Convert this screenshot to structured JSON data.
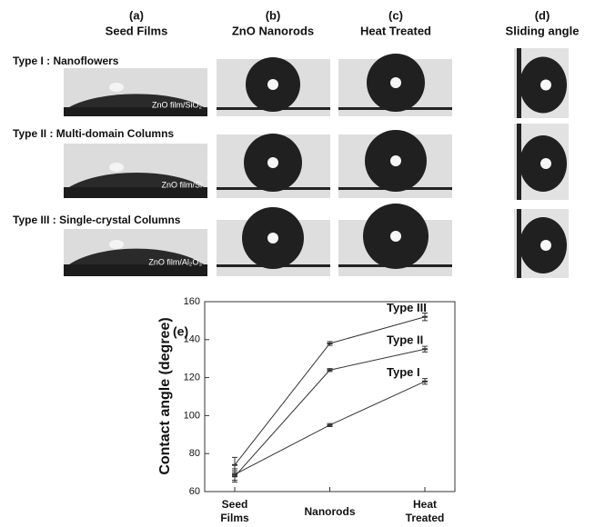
{
  "columns": [
    {
      "letter": "(a)",
      "title": "Seed Films"
    },
    {
      "letter": "(b)",
      "title": "ZnO Nanorods"
    },
    {
      "letter": "(c)",
      "title": "Heat Treated"
    },
    {
      "letter": "(d)",
      "title": "Sliding angle"
    }
  ],
  "rows": [
    {
      "label": "Type I : Nanoflowers",
      "substrate": "ZnO film/SiO₂"
    },
    {
      "label": "Type II : Multi-domain Columns",
      "substrate": "ZnO film/Si"
    },
    {
      "label": "Type III : Single-crystal Columns",
      "substrate": "ZnO film/Al₂O₃"
    }
  ],
  "chart_data": {
    "type": "line",
    "panel": "(e)",
    "y_label": "Contact angle (degree)",
    "categories": [
      "Seed Films",
      "Nanorods",
      "Heat Treated"
    ],
    "series": [
      {
        "name": "Type I",
        "color": "#333333",
        "values": [
          69,
          95,
          118
        ],
        "errors": [
          3,
          0.8,
          1.5
        ]
      },
      {
        "name": "Type II",
        "color": "#333333",
        "values": [
          68,
          124,
          135
        ],
        "errors": [
          3,
          0.8,
          1.5
        ]
      },
      {
        "name": "Type III",
        "color": "#333333",
        "values": [
          74,
          138,
          152
        ],
        "errors": [
          4,
          1,
          2
        ]
      }
    ],
    "ylim": [
      60,
      160
    ],
    "yticks": [
      60,
      80,
      100,
      120,
      140,
      160
    ]
  }
}
